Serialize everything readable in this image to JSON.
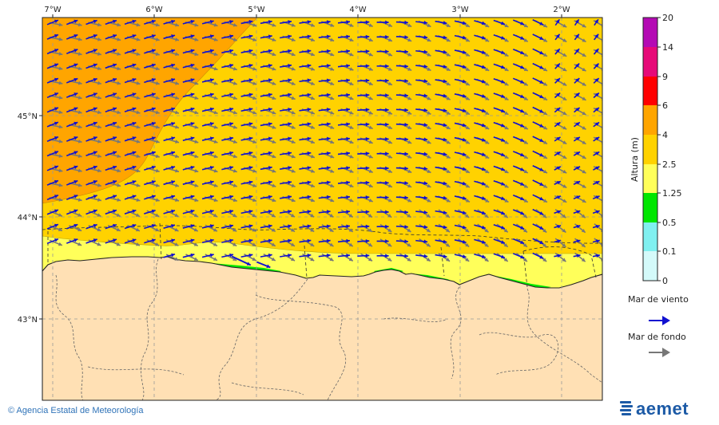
{
  "map": {
    "lon_ticks": [
      "7°W",
      "6°W",
      "5°W",
      "4°W",
      "3°W",
      "2°W"
    ],
    "lat_ticks": [
      "45°N",
      "44°N",
      "43°N"
    ]
  },
  "colorbar": {
    "label": "Altura (m)",
    "levels": [
      "20",
      "14",
      "9",
      "6",
      "4",
      "2.5",
      "1.25",
      "0.5",
      "0.1",
      "0"
    ],
    "colors": {
      "band_14_20": "#b40ab4",
      "band_9_14": "#e60a78",
      "band_6_9": "#ff0000",
      "band_4_6": "#ffa500",
      "band_2_5_4": "#ffd200",
      "band_1_25_2_5": "#ffff5a",
      "band_0_5_1_25": "#00e600",
      "band_0_1_0_5": "#80f0f0",
      "band_0_0_1": "#d4fafa"
    }
  },
  "legend": {
    "wind_sea": "Mar de viento",
    "swell": "Mar de fondo",
    "wind_color": "#1010d0",
    "swell_color": "#777777"
  },
  "footer": {
    "agency": "© Agencia Estatal de Meteorología",
    "logo": "aemet"
  }
}
